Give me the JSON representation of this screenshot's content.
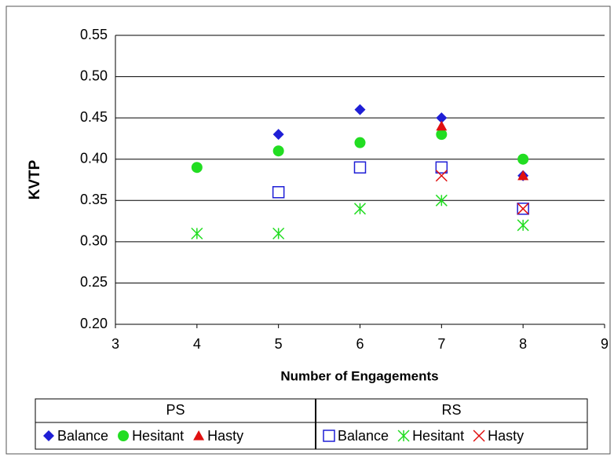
{
  "chart_data": {
    "type": "scatter",
    "x_label": "Number of Engagements",
    "y_label": "KVTP",
    "xlim": [
      3,
      9
    ],
    "xticks": [
      3,
      4,
      5,
      6,
      7,
      8,
      9
    ],
    "ylim": [
      0.2,
      0.55
    ],
    "yticks": [
      {
        "value": 0.2,
        "label": "0.20"
      },
      {
        "value": 0.25,
        "label": "0.25"
      },
      {
        "value": 0.3,
        "label": "0.30"
      },
      {
        "value": 0.35,
        "label": "0.35"
      },
      {
        "value": 0.4,
        "label": "0.40"
      },
      {
        "value": 0.45,
        "label": "0.45"
      },
      {
        "value": 0.5,
        "label": "0.50"
      },
      {
        "value": 0.55,
        "label": "0.55"
      }
    ],
    "grid": true,
    "legend_groups": [
      "PS",
      "RS"
    ],
    "series": [
      {
        "name": "Balance",
        "group": 0,
        "marker": "diamond",
        "color": "#1f1fd6",
        "x": [
          5,
          6,
          7,
          8
        ],
        "values": [
          0.43,
          0.46,
          0.45,
          0.38
        ]
      },
      {
        "name": "Hesitant",
        "group": 0,
        "marker": "circle",
        "color": "#22dd22",
        "x": [
          4,
          5,
          6,
          7,
          8
        ],
        "values": [
          0.39,
          0.41,
          0.42,
          0.43,
          0.4
        ]
      },
      {
        "name": "Hasty",
        "group": 0,
        "marker": "triangle",
        "color": "#e01010",
        "x": [
          7,
          8
        ],
        "values": [
          0.44,
          0.38
        ]
      },
      {
        "name": "Balance",
        "group": 1,
        "marker": "square",
        "color": "#1f1fd6",
        "x": [
          5,
          6,
          7,
          8
        ],
        "values": [
          0.36,
          0.39,
          0.39,
          0.34
        ]
      },
      {
        "name": "Hesitant",
        "group": 1,
        "marker": "asterisk",
        "color": "#22dd22",
        "x": [
          4,
          5,
          6,
          7,
          8
        ],
        "values": [
          0.31,
          0.31,
          0.34,
          0.35,
          0.32
        ]
      },
      {
        "name": "Hasty",
        "group": 1,
        "marker": "x",
        "color": "#e01010",
        "x": [
          7,
          8
        ],
        "values": [
          0.38,
          0.34
        ]
      }
    ]
  }
}
